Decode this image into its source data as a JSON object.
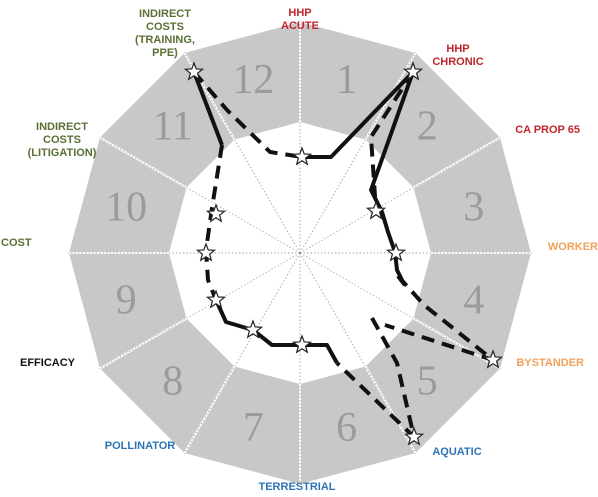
{
  "colors": {
    "band": "#c8c8c8",
    "band_stroke": "#ffffff",
    "inner_fill": "#ffffff",
    "divider": "#888888",
    "number": "#9b9b9b",
    "red": "#c0262d",
    "orange": "#f0a15a",
    "olive": "#5a7034",
    "black": "#111111",
    "blue": "#2e74b5"
  },
  "segments": [
    {
      "number": "1"
    },
    {
      "number": "2"
    },
    {
      "number": "3"
    },
    {
      "number": "4"
    },
    {
      "number": "5"
    },
    {
      "number": "6"
    },
    {
      "number": "7"
    },
    {
      "number": "8"
    },
    {
      "number": "9"
    },
    {
      "number": "10"
    },
    {
      "number": "11"
    },
    {
      "number": "12"
    }
  ],
  "labels": [
    {
      "key": "hhp_acute",
      "lines": [
        "HHP",
        "ACUTE"
      ],
      "color": "red"
    },
    {
      "key": "hhp_chronic",
      "lines": [
        "HHP",
        "CHRONIC"
      ],
      "color": "red"
    },
    {
      "key": "ca_prop65",
      "lines": [
        "CA PROP 65"
      ],
      "color": "red"
    },
    {
      "key": "worker",
      "lines": [
        "WORKER"
      ],
      "color": "orange"
    },
    {
      "key": "bystander",
      "lines": [
        "BYSTANDER"
      ],
      "color": "orange"
    },
    {
      "key": "aquatic",
      "lines": [
        "AQUATIC"
      ],
      "color": "blue"
    },
    {
      "key": "terrestrial",
      "lines": [
        "TERRESTRIAL"
      ],
      "color": "blue"
    },
    {
      "key": "pollinator",
      "lines": [
        "POLLINATOR"
      ],
      "color": "blue"
    },
    {
      "key": "efficacy",
      "lines": [
        "EFFICACY"
      ],
      "color": "black"
    },
    {
      "key": "cost",
      "lines": [
        "COST"
      ],
      "color": "olive"
    },
    {
      "key": "indirect_litig",
      "lines": [
        "INDIRECT",
        "COSTS",
        "(LITIGATION)"
      ],
      "color": "olive"
    },
    {
      "key": "indirect_train",
      "lines": [
        "INDIRECT",
        "COSTS",
        "(TRAINING,",
        "PPE)"
      ],
      "color": "olive"
    }
  ]
}
